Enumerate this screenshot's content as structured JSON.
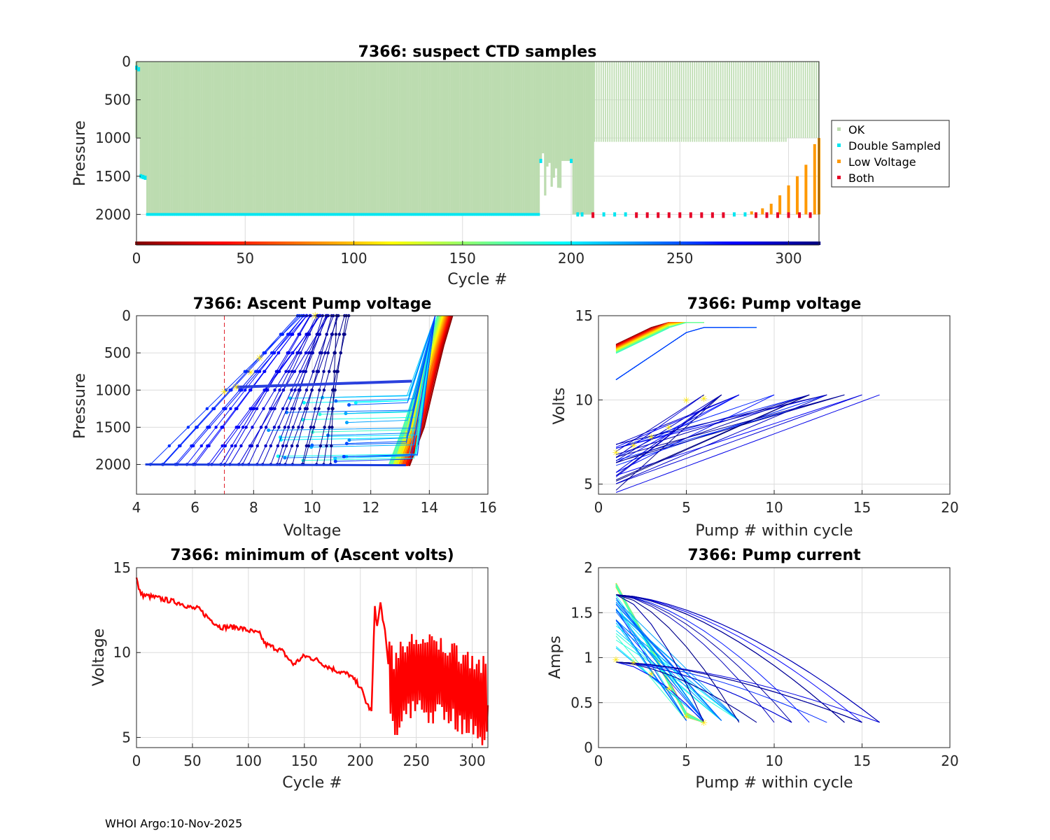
{
  "footer": "WHOI Argo:10-Nov-2025",
  "chart_data": [
    {
      "id": "ctd",
      "type": "scatter",
      "title": "7366: suspect CTD samples",
      "xlabel": "Cycle #",
      "ylabel": "Pressure",
      "xlim": [
        0,
        314
      ],
      "ylim": [
        2400,
        0
      ],
      "xticks": [
        0,
        50,
        100,
        150,
        200,
        250,
        300
      ],
      "yticks": [
        0,
        500,
        1000,
        1500,
        2000
      ],
      "legend": {
        "position": "outside-right",
        "entries": [
          {
            "label": "OK",
            "color": "#bcdcb0"
          },
          {
            "label": "Double Sampled",
            "color": "#00e6f0"
          },
          {
            "label": "Low Voltage",
            "color": "#ff9900"
          },
          {
            "label": "Both",
            "color": "#e60026"
          }
        ]
      },
      "ok_profile_depth": [
        {
          "cycle_range": [
            0,
            1
          ],
          "max_pressure": 1000
        },
        {
          "cycle_range": [
            2,
            4
          ],
          "max_pressure": 1500
        },
        {
          "cycle_range": [
            5,
            185
          ],
          "max_pressure": 2000
        },
        {
          "cycle_range": [
            186,
            186
          ],
          "max_pressure": 1300
        },
        {
          "cycle_range": [
            187,
            195
          ],
          "max_pressure": 1650
        },
        {
          "cycle_range": [
            196,
            200
          ],
          "max_pressure": 1300
        },
        {
          "cycle_range": [
            201,
            210
          ],
          "max_pressure": 2000
        },
        {
          "cycle_range": [
            211,
            299
          ],
          "max_pressure": 1050
        },
        {
          "cycle_range": [
            300,
            314
          ],
          "max_pressure": 1000
        }
      ],
      "double_sampled_depth": 2000,
      "both_cycles": [
        210,
        230,
        235,
        240,
        245,
        250,
        255,
        260,
        265,
        270,
        285,
        290,
        295,
        300,
        305,
        310
      ],
      "low_voltage_cycles": [
        {
          "cycle": 283,
          "top": 1960
        },
        {
          "cycle": 288,
          "top": 1920
        },
        {
          "cycle": 292,
          "top": 1860
        },
        {
          "cycle": 296,
          "top": 1750
        },
        {
          "cycle": 300,
          "top": 1620
        },
        {
          "cycle": 304,
          "top": 1500
        },
        {
          "cycle": 308,
          "top": 1350
        },
        {
          "cycle": 312,
          "top": 1080
        },
        {
          "cycle": 314,
          "top": 1000
        }
      ],
      "cycle_colorbar": "jet-reversed"
    },
    {
      "id": "ascent",
      "type": "line",
      "title": "7366: Ascent Pump voltage",
      "xlabel": "Voltage",
      "ylabel": "Pressure",
      "xlim": [
        4,
        16
      ],
      "ylim": [
        2400,
        0
      ],
      "xticks": [
        4,
        6,
        8,
        10,
        12,
        14,
        16
      ],
      "yticks": [
        0,
        500,
        1000,
        1500,
        2000
      ],
      "threshold_voltage": 7
    },
    {
      "id": "pumpv",
      "type": "line",
      "title": "7366: Pump voltage",
      "xlabel": "Pump # within cycle",
      "ylabel": "Volts",
      "xlim": [
        0,
        20
      ],
      "ylim": [
        4.4,
        15
      ],
      "xticks": [
        0,
        5,
        10,
        15,
        20
      ],
      "yticks": [
        5,
        10,
        15
      ]
    },
    {
      "id": "minv",
      "type": "line",
      "title": "7366: minimum of (Ascent volts)",
      "xlabel": "Cycle #",
      "ylabel": "Voltage",
      "xlim": [
        0,
        314
      ],
      "ylim": [
        4.4,
        15
      ],
      "xticks": [
        0,
        50,
        100,
        150,
        200,
        250,
        300
      ],
      "yticks": [
        5,
        10,
        15
      ],
      "series": [
        {
          "name": "minimum ascent voltage",
          "color": "#ff0000",
          "points": [
            [
              0,
              14.5
            ],
            [
              2,
              13.7
            ],
            [
              5,
              13.4
            ],
            [
              20,
              13.2
            ],
            [
              40,
              12.9
            ],
            [
              50,
              12.6
            ],
            [
              55,
              12.6
            ],
            [
              65,
              12.0
            ],
            [
              75,
              11.5
            ],
            [
              90,
              11.5
            ],
            [
              110,
              11.1
            ],
            [
              115,
              10.5
            ],
            [
              130,
              10.1
            ],
            [
              140,
              9.3
            ],
            [
              150,
              9.8
            ],
            [
              160,
              9.6
            ],
            [
              170,
              9.2
            ],
            [
              180,
              8.9
            ],
            [
              190,
              8.7
            ],
            [
              200,
              8.0
            ],
            [
              205,
              7.1
            ],
            [
              210,
              6.5
            ],
            [
              213,
              12.8
            ],
            [
              215,
              11.5
            ],
            [
              218,
              12.9
            ],
            [
              222,
              11.2
            ],
            [
              225,
              9.3
            ],
            [
              230,
              7.6
            ],
            [
              240,
              8.3
            ],
            [
              250,
              8.8
            ],
            [
              260,
              8.4
            ],
            [
              265,
              8.5
            ],
            [
              270,
              8.4
            ],
            [
              280,
              8.2
            ],
            [
              290,
              7.9
            ],
            [
              300,
              7.6
            ],
            [
              314,
              6.9
            ]
          ]
        }
      ]
    },
    {
      "id": "pumpc",
      "type": "line",
      "title": "7366: Pump current",
      "xlabel": "Pump # within cycle",
      "ylabel": "Amps",
      "xlim": [
        0,
        20
      ],
      "ylim": [
        0,
        2
      ],
      "xticks": [
        0,
        5,
        10,
        15,
        20
      ],
      "yticks": [
        0,
        0.5,
        1,
        1.5,
        2
      ]
    }
  ]
}
